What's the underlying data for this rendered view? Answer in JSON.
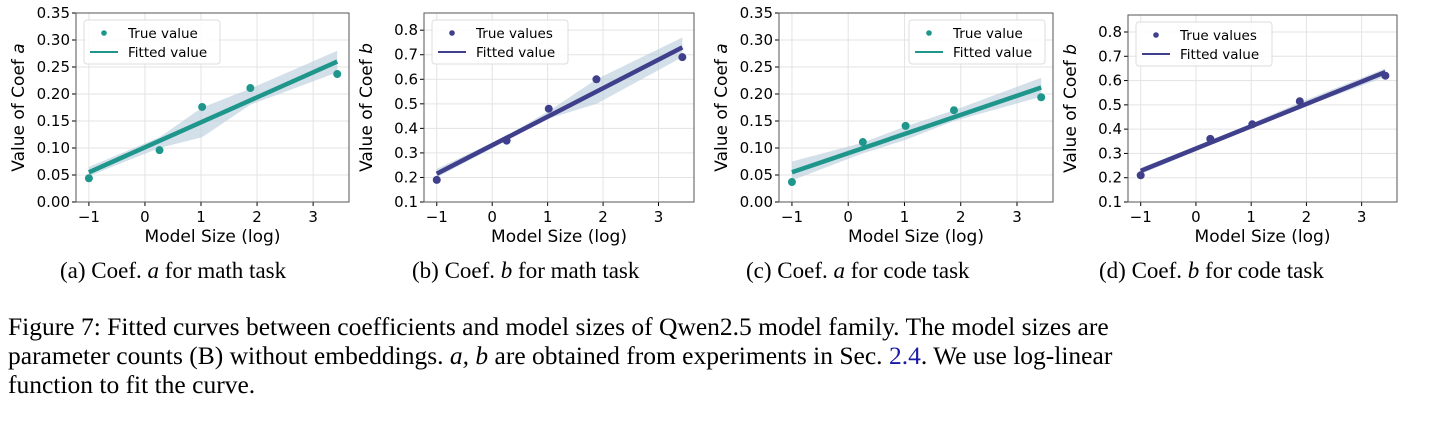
{
  "chart_data": [
    {
      "type": "scatter+line",
      "xlabel": "Model Size (log)",
      "ylabel_prefix": "Value of Coef ",
      "ylabel_var": "a",
      "xlim": [
        -1.23,
        3.64
      ],
      "ylim": [
        0,
        0.35
      ],
      "xticks": [
        "-1",
        "0",
        "1",
        "2",
        "3"
      ],
      "yticks": [
        "0.00",
        "0.05",
        "0.10",
        "0.15",
        "0.20",
        "0.25",
        "0.30",
        "0.35"
      ],
      "grid": true,
      "legend": "top-left",
      "legend_labels": [
        "True value",
        "Fitted value"
      ],
      "color": "#1f968b",
      "x": [
        -1.0,
        0.26,
        1.02,
        1.88,
        3.43
      ],
      "true_values": [
        0.044,
        0.096,
        0.176,
        0.211,
        0.237
      ],
      "fit_x": [
        -1.0,
        3.43
      ],
      "fit_y": [
        0.055,
        0.26
      ],
      "band_lower": [
        0.048,
        0.1,
        0.12,
        0.18,
        0.24
      ],
      "band_upper": [
        0.065,
        0.12,
        0.175,
        0.21,
        0.28
      ]
    },
    {
      "type": "scatter+line",
      "xlabel": "Model Size (log)",
      "ylabel_prefix": "Value of Coef ",
      "ylabel_var": "b",
      "xlim": [
        -1.23,
        3.64
      ],
      "ylim": [
        0.1,
        0.87
      ],
      "xticks": [
        "-1",
        "0",
        "1",
        "2",
        "3"
      ],
      "yticks": [
        "0.1",
        "0.2",
        "0.3",
        "0.4",
        "0.5",
        "0.6",
        "0.7",
        "0.8"
      ],
      "grid": true,
      "legend": "top-left",
      "legend_labels": [
        "True values",
        "Fitted value"
      ],
      "color": "#3f3f8c",
      "x": [
        -1.0,
        0.26,
        1.02,
        1.88,
        3.43
      ],
      "true_values": [
        0.19,
        0.35,
        0.48,
        0.6,
        0.69
      ],
      "fit_x": [
        -1.0,
        3.43
      ],
      "fit_y": [
        0.215,
        0.73
      ],
      "band_lower": [
        0.2,
        0.35,
        0.44,
        0.5,
        0.69
      ],
      "band_upper": [
        0.235,
        0.37,
        0.47,
        0.6,
        0.77
      ]
    },
    {
      "type": "scatter+line",
      "xlabel": "Model Size (log)",
      "ylabel_prefix": "Value of Coef ",
      "ylabel_var": "a",
      "xlim": [
        -1.23,
        3.64
      ],
      "ylim": [
        0,
        0.35
      ],
      "xticks": [
        "-1",
        "0",
        "1",
        "2",
        "3"
      ],
      "yticks": [
        "0.00",
        "0.05",
        "0.10",
        "0.15",
        "0.20",
        "0.25",
        "0.30",
        "0.35"
      ],
      "grid": true,
      "legend": "top-right",
      "legend_labels": [
        "True value",
        "Fitted value"
      ],
      "color": "#1f968b",
      "x": [
        -1.0,
        0.26,
        1.02,
        1.88,
        3.43
      ],
      "true_values": [
        0.037,
        0.111,
        0.141,
        0.17,
        0.194
      ],
      "fit_x": [
        -1.0,
        3.43
      ],
      "fit_y": [
        0.055,
        0.212
      ],
      "band_lower": [
        0.04,
        0.09,
        0.115,
        0.15,
        0.195
      ],
      "band_upper": [
        0.075,
        0.11,
        0.14,
        0.17,
        0.23
      ]
    },
    {
      "type": "scatter+line",
      "xlabel": "Model Size (log)",
      "ylabel_prefix": "Value of Coef ",
      "ylabel_var": "b",
      "xlim": [
        -1.23,
        3.64
      ],
      "ylim": [
        0.1,
        0.87
      ],
      "xticks": [
        "-1",
        "0",
        "1",
        "2",
        "3"
      ],
      "yticks": [
        "0.1",
        "0.2",
        "0.3",
        "0.4",
        "0.5",
        "0.6",
        "0.7",
        "0.8"
      ],
      "grid": true,
      "legend": "top-left",
      "legend_labels": [
        "True values",
        "Fitted value"
      ],
      "color": "#3f3f8c",
      "x": [
        -1.0,
        0.26,
        1.02,
        1.88,
        3.43
      ],
      "true_values": [
        0.21,
        0.36,
        0.42,
        0.515,
        0.62
      ],
      "fit_x": [
        -1.0,
        3.43
      ],
      "fit_y": [
        0.228,
        0.635
      ],
      "band_lower": [
        0.215,
        0.335,
        0.405,
        0.485,
        0.615
      ],
      "band_upper": [
        0.24,
        0.355,
        0.425,
        0.51,
        0.65
      ]
    }
  ],
  "band_color": "#b8cbda",
  "subcaptions": [
    {
      "prefix": "(a) Coef. ",
      "var": "a",
      "suffix": " for math task"
    },
    {
      "prefix": "(b) Coef. ",
      "var": "b",
      "suffix": " for math task"
    },
    {
      "prefix": "(c) Coef. ",
      "var": "a",
      "suffix": " for code task"
    },
    {
      "prefix": "(d) Coef. ",
      "var": "b",
      "suffix": " for code task"
    }
  ],
  "caption": {
    "line1": "Figure 7: Fitted curves between coefficients and model sizes of Qwen2.5 model family. The model sizes are",
    "line2_a": "parameter counts (B) without embeddings. ",
    "line2_vars": "a, b",
    "line2_b": " are obtained from experiments in Sec. ",
    "line2_ref": "2.4",
    "line2_c": ". We use log-linear",
    "line3": "function to fit the curve."
  }
}
